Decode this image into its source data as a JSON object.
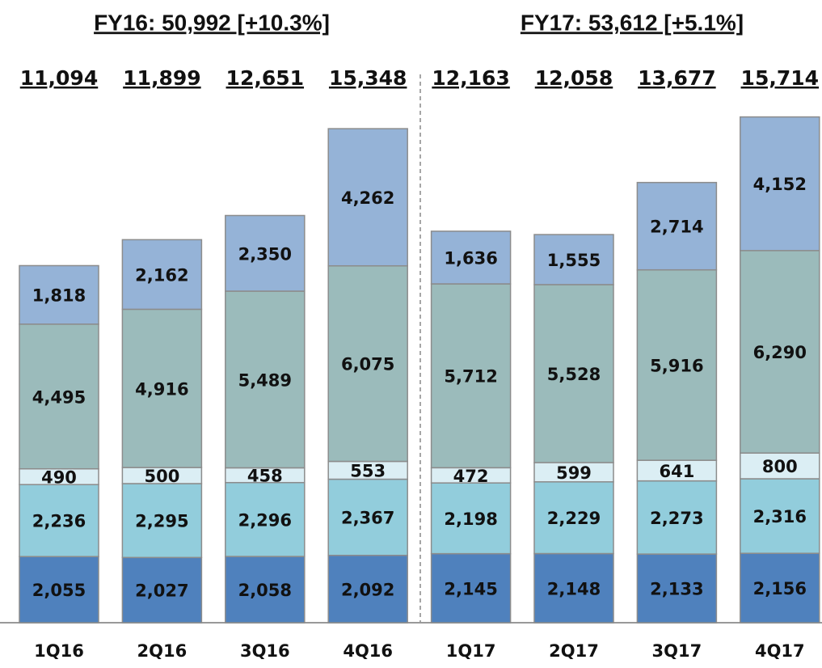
{
  "chart_data": {
    "type": "stacked_bar",
    "annotations": [
      "FY16: 50,992 [+10.3%]",
      "FY17: 53,612 [+5.1%]"
    ],
    "categories": [
      "1Q16",
      "2Q16",
      "3Q16",
      "4Q16",
      "1Q17",
      "2Q17",
      "3Q17",
      "4Q17"
    ],
    "totals": [
      11094,
      11899,
      12651,
      15348,
      12163,
      12058,
      13677,
      15714
    ],
    "total_labels": [
      "11,094",
      "11,899",
      "12,651",
      "15,348",
      "12,163",
      "12,058",
      "13,677",
      "15,714"
    ],
    "series": [
      {
        "color": "#4f81bd",
        "values": [
          2055,
          2027,
          2058,
          2092,
          2145,
          2148,
          2133,
          2156
        ],
        "value_labels": [
          "2,055",
          "2,027",
          "2,058",
          "2,092",
          "2,145",
          "2,148",
          "2,133",
          "2,156"
        ]
      },
      {
        "color": "#92cddc",
        "values": [
          2236,
          2295,
          2296,
          2367,
          2198,
          2229,
          2273,
          2316
        ],
        "value_labels": [
          "2,236",
          "2,295",
          "2,296",
          "2,367",
          "2,198",
          "2,229",
          "2,273",
          "2,316"
        ]
      },
      {
        "color": "#dbeef4",
        "values": [
          490,
          500,
          458,
          553,
          472,
          599,
          641,
          800
        ]
      },
      {
        "color": "#9bbbbb",
        "values": [
          4495,
          4916,
          5489,
          6075,
          5712,
          5528,
          5916,
          6290
        ],
        "value_labels": [
          "4,495",
          "4,916",
          "5,489",
          "6,075",
          "5,712",
          "5,528",
          "5,916",
          "6,290"
        ]
      },
      {
        "color": "#95b3d7",
        "values": [
          1818,
          2162,
          2350,
          4262,
          1636,
          1555,
          2714,
          4152
        ],
        "value_labels": [
          "1,818",
          "2,162",
          "2,350",
          "4,262",
          "1,636",
          "1,555",
          "2,714",
          "4,152"
        ]
      }
    ]
  }
}
